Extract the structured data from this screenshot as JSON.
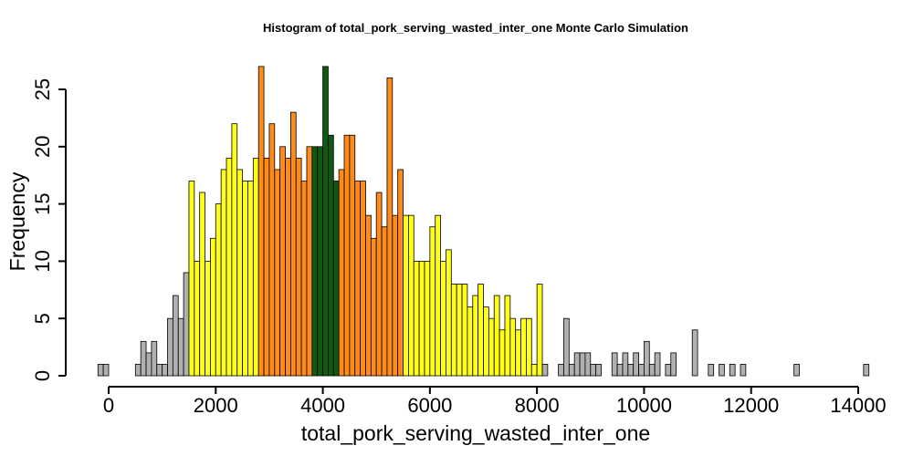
{
  "chart_data": {
    "type": "bar",
    "title": "Histogram of  total_pork_serving_wasted_inter_one  Monte Carlo Simulation",
    "xlabel": "total_pork_serving_wasted_inter_one",
    "ylabel": "Frequency",
    "xlim": [
      -300,
      14000
    ],
    "ylim": [
      0,
      27
    ],
    "x_ticks": [
      0,
      2000,
      4000,
      6000,
      8000,
      10000,
      12000,
      14000
    ],
    "x_tick_labels": [
      "0",
      "2000",
      "4000",
      "6000",
      "8000",
      "10000",
      "12000",
      "14000"
    ],
    "y_ticks": [
      0,
      5,
      10,
      15,
      20,
      25
    ],
    "y_tick_labels": [
      "0",
      "5",
      "10",
      "15",
      "20",
      "25"
    ],
    "bin_start": -200,
    "bin_width": 100,
    "colors": {
      "tail": "#b0b0b0",
      "outer": "#ffff1a",
      "inner": "#ff8c1a",
      "center": "#0f5a0f"
    },
    "bins": [
      {
        "count": 1,
        "zone": "tail"
      },
      {
        "count": 1,
        "zone": "tail"
      },
      {
        "count": 0,
        "zone": "tail"
      },
      {
        "count": 0,
        "zone": "tail"
      },
      {
        "count": 0,
        "zone": "tail"
      },
      {
        "count": 0,
        "zone": "tail"
      },
      {
        "count": 0,
        "zone": "tail"
      },
      {
        "count": 1,
        "zone": "tail"
      },
      {
        "count": 3,
        "zone": "tail"
      },
      {
        "count": 2,
        "zone": "tail"
      },
      {
        "count": 3,
        "zone": "tail"
      },
      {
        "count": 1,
        "zone": "tail"
      },
      {
        "count": 1,
        "zone": "tail"
      },
      {
        "count": 5,
        "zone": "tail"
      },
      {
        "count": 7,
        "zone": "tail"
      },
      {
        "count": 5,
        "zone": "tail"
      },
      {
        "count": 9,
        "zone": "tail"
      },
      {
        "count": 17,
        "zone": "outer"
      },
      {
        "count": 10,
        "zone": "outer"
      },
      {
        "count": 16,
        "zone": "outer"
      },
      {
        "count": 10,
        "zone": "outer"
      },
      {
        "count": 12,
        "zone": "outer"
      },
      {
        "count": 15,
        "zone": "outer"
      },
      {
        "count": 18,
        "zone": "outer"
      },
      {
        "count": 19,
        "zone": "outer"
      },
      {
        "count": 22,
        "zone": "outer"
      },
      {
        "count": 18,
        "zone": "outer"
      },
      {
        "count": 17,
        "zone": "outer"
      },
      {
        "count": 17,
        "zone": "outer"
      },
      {
        "count": 19,
        "zone": "outer"
      },
      {
        "count": 27,
        "zone": "inner"
      },
      {
        "count": 19,
        "zone": "inner"
      },
      {
        "count": 22,
        "zone": "inner"
      },
      {
        "count": 18,
        "zone": "inner"
      },
      {
        "count": 20,
        "zone": "inner"
      },
      {
        "count": 19,
        "zone": "inner"
      },
      {
        "count": 23,
        "zone": "inner"
      },
      {
        "count": 19,
        "zone": "inner"
      },
      {
        "count": 17,
        "zone": "inner"
      },
      {
        "count": 20,
        "zone": "inner"
      },
      {
        "count": 20,
        "zone": "center"
      },
      {
        "count": 20,
        "zone": "center"
      },
      {
        "count": 27,
        "zone": "center"
      },
      {
        "count": 21,
        "zone": "center"
      },
      {
        "count": 17,
        "zone": "center"
      },
      {
        "count": 18,
        "zone": "inner"
      },
      {
        "count": 21,
        "zone": "inner"
      },
      {
        "count": 21,
        "zone": "inner"
      },
      {
        "count": 17,
        "zone": "inner"
      },
      {
        "count": 17,
        "zone": "inner"
      },
      {
        "count": 14,
        "zone": "inner"
      },
      {
        "count": 12,
        "zone": "inner"
      },
      {
        "count": 16,
        "zone": "inner"
      },
      {
        "count": 13,
        "zone": "inner"
      },
      {
        "count": 26,
        "zone": "inner"
      },
      {
        "count": 14,
        "zone": "inner"
      },
      {
        "count": 18,
        "zone": "inner"
      },
      {
        "count": 14,
        "zone": "outer"
      },
      {
        "count": 14,
        "zone": "outer"
      },
      {
        "count": 10,
        "zone": "outer"
      },
      {
        "count": 10,
        "zone": "outer"
      },
      {
        "count": 10,
        "zone": "outer"
      },
      {
        "count": 13,
        "zone": "outer"
      },
      {
        "count": 14,
        "zone": "outer"
      },
      {
        "count": 10,
        "zone": "outer"
      },
      {
        "count": 11,
        "zone": "outer"
      },
      {
        "count": 8,
        "zone": "outer"
      },
      {
        "count": 8,
        "zone": "outer"
      },
      {
        "count": 8,
        "zone": "outer"
      },
      {
        "count": 6,
        "zone": "outer"
      },
      {
        "count": 7,
        "zone": "outer"
      },
      {
        "count": 8,
        "zone": "outer"
      },
      {
        "count": 6,
        "zone": "outer"
      },
      {
        "count": 5,
        "zone": "outer"
      },
      {
        "count": 7,
        "zone": "outer"
      },
      {
        "count": 4,
        "zone": "outer"
      },
      {
        "count": 7,
        "zone": "outer"
      },
      {
        "count": 5,
        "zone": "outer"
      },
      {
        "count": 4,
        "zone": "outer"
      },
      {
        "count": 5,
        "zone": "outer"
      },
      {
        "count": 5,
        "zone": "outer"
      },
      {
        "count": 1,
        "zone": "outer"
      },
      {
        "count": 8,
        "zone": "outer"
      },
      {
        "count": 1,
        "zone": "tail"
      },
      {
        "count": 0,
        "zone": "tail"
      },
      {
        "count": 0,
        "zone": "tail"
      },
      {
        "count": 1,
        "zone": "tail"
      },
      {
        "count": 5,
        "zone": "tail"
      },
      {
        "count": 1,
        "zone": "tail"
      },
      {
        "count": 2,
        "zone": "tail"
      },
      {
        "count": 2,
        "zone": "tail"
      },
      {
        "count": 2,
        "zone": "tail"
      },
      {
        "count": 1,
        "zone": "tail"
      },
      {
        "count": 1,
        "zone": "tail"
      },
      {
        "count": 0,
        "zone": "tail"
      },
      {
        "count": 0,
        "zone": "tail"
      },
      {
        "count": 2,
        "zone": "tail"
      },
      {
        "count": 1,
        "zone": "tail"
      },
      {
        "count": 2,
        "zone": "tail"
      },
      {
        "count": 1,
        "zone": "tail"
      },
      {
        "count": 2,
        "zone": "tail"
      },
      {
        "count": 1,
        "zone": "tail"
      },
      {
        "count": 3,
        "zone": "tail"
      },
      {
        "count": 1,
        "zone": "tail"
      },
      {
        "count": 2,
        "zone": "tail"
      },
      {
        "count": 0,
        "zone": "tail"
      },
      {
        "count": 1,
        "zone": "tail"
      },
      {
        "count": 2,
        "zone": "tail"
      },
      {
        "count": 0,
        "zone": "tail"
      },
      {
        "count": 0,
        "zone": "tail"
      },
      {
        "count": 0,
        "zone": "tail"
      },
      {
        "count": 4,
        "zone": "tail"
      },
      {
        "count": 0,
        "zone": "tail"
      },
      {
        "count": 0,
        "zone": "tail"
      },
      {
        "count": 1,
        "zone": "tail"
      },
      {
        "count": 0,
        "zone": "tail"
      },
      {
        "count": 1,
        "zone": "tail"
      },
      {
        "count": 0,
        "zone": "tail"
      },
      {
        "count": 1,
        "zone": "tail"
      },
      {
        "count": 0,
        "zone": "tail"
      },
      {
        "count": 1,
        "zone": "tail"
      },
      {
        "count": 0,
        "zone": "tail"
      },
      {
        "count": 0,
        "zone": "tail"
      },
      {
        "count": 0,
        "zone": "tail"
      },
      {
        "count": 0,
        "zone": "tail"
      },
      {
        "count": 0,
        "zone": "tail"
      },
      {
        "count": 0,
        "zone": "tail"
      },
      {
        "count": 0,
        "zone": "tail"
      },
      {
        "count": 0,
        "zone": "tail"
      },
      {
        "count": 0,
        "zone": "tail"
      },
      {
        "count": 1,
        "zone": "tail"
      },
      {
        "count": 0,
        "zone": "tail"
      },
      {
        "count": 0,
        "zone": "tail"
      },
      {
        "count": 0,
        "zone": "tail"
      },
      {
        "count": 0,
        "zone": "tail"
      },
      {
        "count": 0,
        "zone": "tail"
      },
      {
        "count": 0,
        "zone": "tail"
      },
      {
        "count": 0,
        "zone": "tail"
      },
      {
        "count": 0,
        "zone": "tail"
      },
      {
        "count": 0,
        "zone": "tail"
      },
      {
        "count": 0,
        "zone": "tail"
      },
      {
        "count": 0,
        "zone": "tail"
      },
      {
        "count": 0,
        "zone": "tail"
      },
      {
        "count": 1,
        "zone": "tail"
      }
    ]
  }
}
